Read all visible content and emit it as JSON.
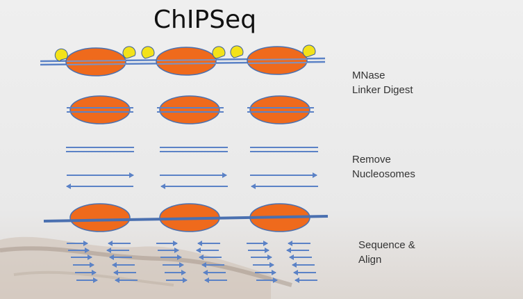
{
  "title": "ChIPSeq",
  "steps": [
    {
      "lines": [
        "MNase",
        "Linker Digest"
      ]
    },
    {
      "lines": [
        "Remove",
        "Nucleosomes"
      ]
    },
    {
      "lines": [
        "Sequence &",
        "Align"
      ]
    }
  ],
  "colors": {
    "nucleosome_fill": "#ef6a1c",
    "nucleosome_stroke": "#4a70b0",
    "dna": "#5b82c6",
    "protein": "#f3e21a",
    "background": "#ececec"
  }
}
